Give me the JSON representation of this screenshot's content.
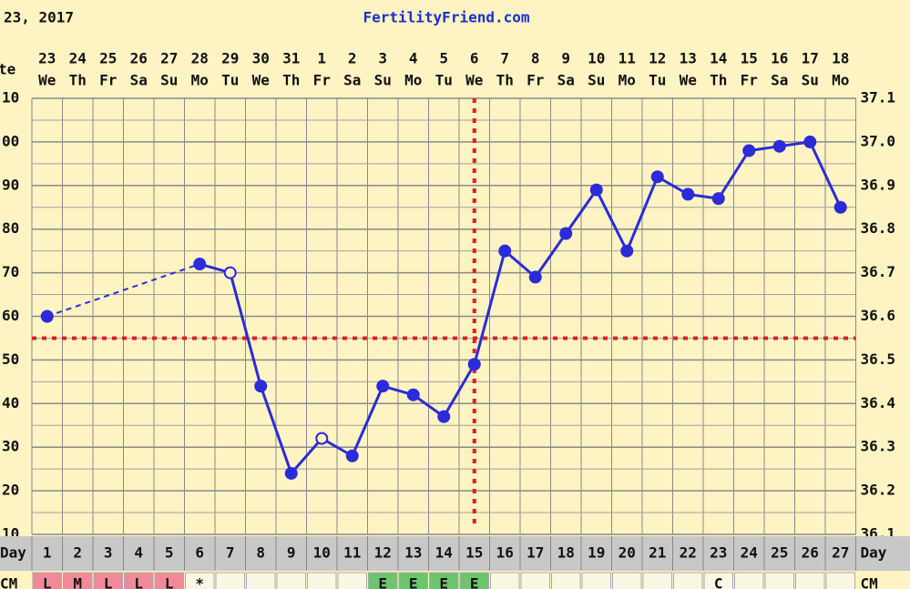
{
  "chart_data": {
    "type": "line",
    "title": "FertilityFriend.com",
    "date_heading": "23, 2017",
    "row_labels": {
      "date": "te",
      "day": "Day",
      "cm": "CM"
    },
    "dates": [
      "23",
      "24",
      "25",
      "26",
      "27",
      "28",
      "29",
      "30",
      "31",
      "1",
      "2",
      "3",
      "4",
      "5",
      "6",
      "7",
      "8",
      "9",
      "10",
      "11",
      "12",
      "13",
      "14",
      "15",
      "16",
      "17",
      "18"
    ],
    "weekdays": [
      "We",
      "Th",
      "Fr",
      "Sa",
      "Su",
      "Mo",
      "Tu",
      "We",
      "Th",
      "Fr",
      "Sa",
      "Su",
      "Mo",
      "Tu",
      "We",
      "Th",
      "Fr",
      "Sa",
      "Su",
      "Mo",
      "Tu",
      "We",
      "Th",
      "Fr",
      "Sa",
      "Su",
      "Mo"
    ],
    "x": [
      1,
      2,
      3,
      4,
      5,
      6,
      7,
      8,
      9,
      10,
      11,
      12,
      13,
      14,
      15,
      16,
      17,
      18,
      19,
      20,
      21,
      22,
      23,
      24,
      25,
      26,
      27
    ],
    "series": [
      {
        "color": "#2b2bd9",
        "values": [
          36.6,
          null,
          null,
          null,
          null,
          36.72,
          36.7,
          36.44,
          36.24,
          36.32,
          36.28,
          36.44,
          36.42,
          36.37,
          36.49,
          36.75,
          36.69,
          36.79,
          36.89,
          36.75,
          36.92,
          36.88,
          36.87,
          36.98,
          36.99,
          37.0,
          36.85
        ],
        "markers": [
          "filled",
          null,
          null,
          null,
          null,
          "filled",
          "open",
          "filled",
          "filled",
          "open",
          "filled",
          "filled",
          "filled",
          "filled",
          "filled",
          "filled",
          "filled",
          "filled",
          "filled",
          "filled",
          "filled",
          "filled",
          "filled",
          "filled",
          "filled",
          "filled",
          "filled"
        ]
      }
    ],
    "gap_style": "dashed",
    "coverline": 36.55,
    "coverline_color": "#e02020",
    "ovulation_day": 15,
    "xlim": [
      0.5,
      27.5
    ],
    "ylim": [
      36.1,
      37.1
    ],
    "yticks": [
      36.1,
      36.2,
      36.3,
      36.4,
      36.5,
      36.6,
      36.7,
      36.8,
      36.9,
      {
        "value": 37.0,
        "label": "37.0"
      },
      37.1
    ],
    "left_tick_labels": [
      "10",
      "20",
      "30",
      "40",
      "50",
      "60",
      "70",
      "80",
      "90",
      "00",
      "10"
    ],
    "grid": true,
    "cm": [
      "L",
      "M",
      "L",
      "L",
      "L",
      "*",
      null,
      null,
      null,
      null,
      null,
      "E",
      "E",
      "E",
      "E",
      null,
      null,
      null,
      null,
      null,
      null,
      null,
      "C",
      null,
      null,
      null,
      null
    ],
    "cm_colors": {
      "L": "#f08a9a",
      "M": "#f08a9a",
      "E": "#6cc46c"
    }
  }
}
